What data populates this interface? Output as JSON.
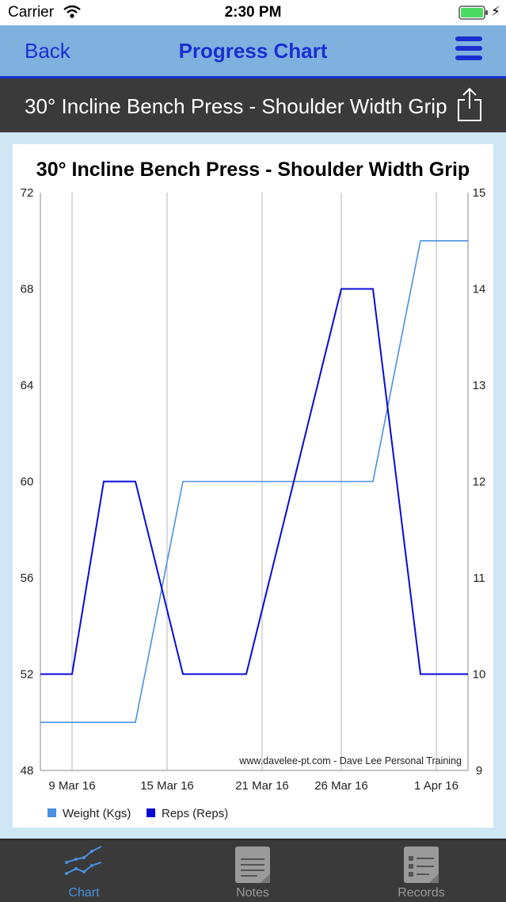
{
  "status_bar": {
    "carrier": "Carrier",
    "time": "2:30 PM"
  },
  "nav": {
    "back_label": "Back",
    "title": "Progress Chart"
  },
  "exercise": {
    "title": "30° Incline Bench Press - Shoulder Width Grip"
  },
  "chart_data": {
    "type": "line",
    "title": "30° Incline Bench Press - Shoulder Width Grip",
    "watermark": "www.davelee-pt.com - Dave Lee Personal Training",
    "x_tick_labels": [
      "9 Mar 16",
      "15 Mar 16",
      "21 Mar 16",
      "26 Mar 16",
      "1 Apr 16"
    ],
    "y_left": {
      "ylim": [
        48,
        72
      ],
      "ticks": [
        "48",
        "52",
        "56",
        "60",
        "64",
        "68",
        "72"
      ]
    },
    "y_right": {
      "ylim": [
        9,
        15
      ],
      "ticks": [
        "9",
        "10",
        "11",
        "12",
        "13",
        "14",
        "15"
      ]
    },
    "x": [
      "7 Mar 16",
      "9 Mar 16",
      "11 Mar 16",
      "13 Mar 16",
      "16 Mar 16",
      "20 Mar 16",
      "23 Mar 16",
      "26 Mar 16",
      "28 Mar 16",
      "31 Mar 16",
      "3 Apr 16"
    ],
    "series": [
      {
        "name": "Weight (Kgs)",
        "axis": "left",
        "color": "#4a90e2",
        "values": [
          50,
          50,
          50,
          50,
          60,
          60,
          60,
          60,
          60,
          70,
          70
        ]
      },
      {
        "name": "Reps (Reps)",
        "axis": "right",
        "color": "#0a0ad8",
        "values": [
          10,
          10,
          12,
          12,
          10,
          10,
          12,
          14,
          14,
          10,
          10
        ]
      }
    ],
    "legend_placement": "bottom-left",
    "grid": "vertical"
  },
  "tabs": [
    {
      "label": "Chart",
      "active": true
    },
    {
      "label": "Notes",
      "active": false
    },
    {
      "label": "Records",
      "active": false
    }
  ],
  "colors": {
    "nav_bg": "#7fb1df",
    "nav_text": "#1a2fd0",
    "header_bg": "#3a3a3a",
    "active_tab": "#4a90e2"
  }
}
